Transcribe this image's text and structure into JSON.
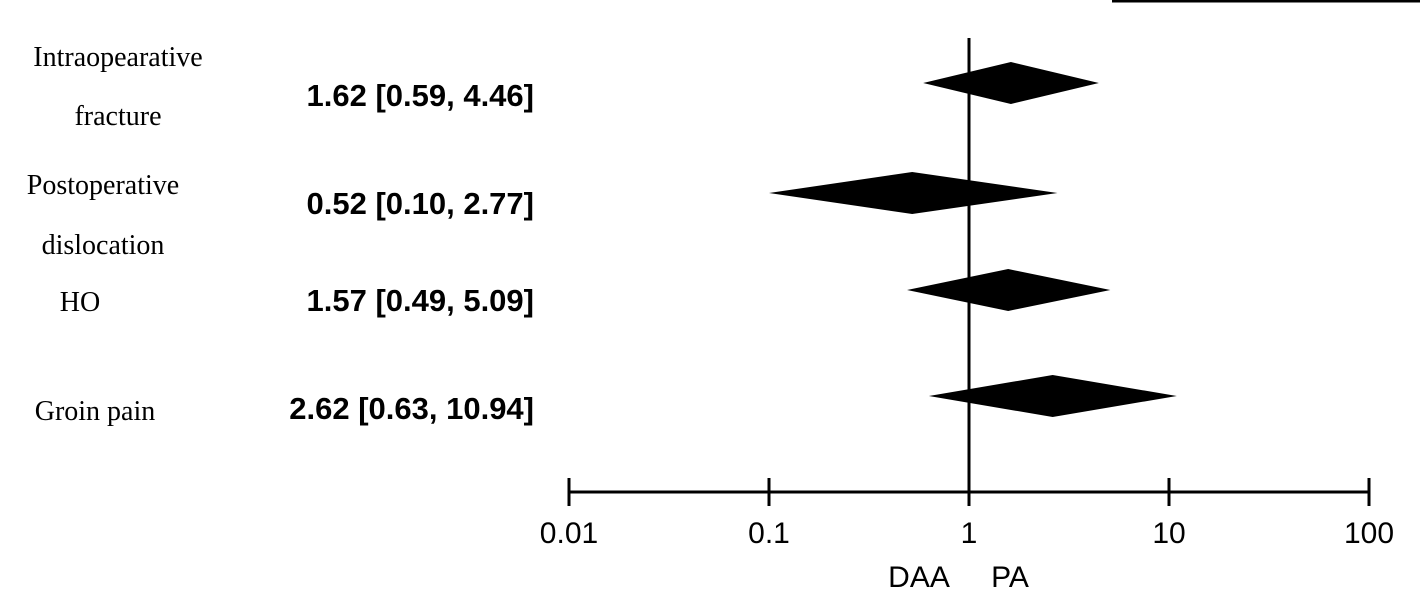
{
  "chart_data": {
    "type": "forest",
    "x_scale": "log",
    "xlim": [
      0.01,
      100
    ],
    "ticks": [
      "0.01",
      "0.1",
      "1",
      "10",
      "100"
    ],
    "tick_values": [
      0.01,
      0.1,
      1,
      10,
      100
    ],
    "reference_line": 1,
    "xlabel_left": "DAA",
    "xlabel_right": "PA",
    "rows": [
      {
        "label_lines": [
          "Intraopearative",
          "fracture"
        ],
        "effect_text": "1.62 [0.59, 4.46]",
        "estimate": 1.62,
        "ci_low": 0.59,
        "ci_high": 4.46
      },
      {
        "label_lines": [
          "Postoperative",
          "dislocation"
        ],
        "effect_text": "0.52 [0.10, 2.77]",
        "estimate": 0.52,
        "ci_low": 0.1,
        "ci_high": 2.77
      },
      {
        "label_lines": [
          "HO"
        ],
        "effect_text": "1.57 [0.49, 5.09]",
        "estimate": 1.57,
        "ci_low": 0.49,
        "ci_high": 5.09
      },
      {
        "label_lines": [
          "Groin pain"
        ],
        "effect_text": "2.62 [0.63, 10.94]",
        "estimate": 2.62,
        "ci_low": 0.63,
        "ci_high": 10.94
      }
    ]
  }
}
